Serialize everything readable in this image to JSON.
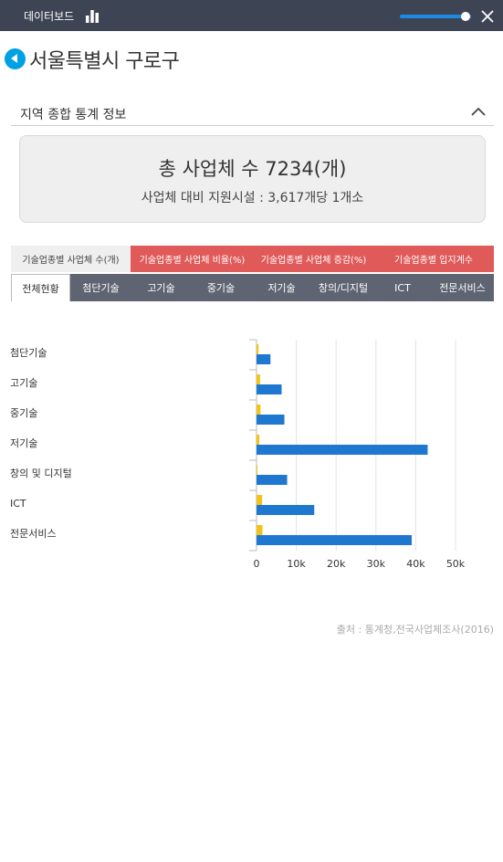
{
  "topbar": {
    "title": "데이터보드",
    "icons": [
      "bar-chart-icon",
      "slider",
      "close-icon"
    ],
    "slider_level": 0.92
  },
  "header": {
    "title": "서울특별시 구로구",
    "icon": "back-arrow-icon"
  },
  "section": {
    "title": "지역 종합 통계 정보",
    "icon": "chevron-up-icon"
  },
  "summary": {
    "title": "총 사업체 수 7234(개)",
    "subtitle": "사업체 대비 지원시설 : 3,617개당 1개소"
  },
  "tabs": [
    {
      "label": "기술업종별 사업체 수(개)",
      "active": true
    },
    {
      "label": "기술업종별 사업체 비율(%)",
      "active": false
    },
    {
      "label": "기술업종별 사업체 증감(%)",
      "active": false
    },
    {
      "label": "기술업종별 입지계수",
      "active": false
    }
  ],
  "subtabs": [
    {
      "label": "전체현황",
      "active": true
    },
    {
      "label": "첨단기술",
      "active": false
    },
    {
      "label": "고기술",
      "active": false
    },
    {
      "label": "중기술",
      "active": false
    },
    {
      "label": "저기술",
      "active": false
    },
    {
      "label": "창의/디지털",
      "active": false
    },
    {
      "label": "ICT",
      "active": false
    },
    {
      "label": "전문서비스",
      "active": false
    }
  ],
  "colors": {
    "topbar": "#3d4453",
    "accent": "#00a0e4",
    "tab_red": "#e05a5a",
    "subtab_bg": "#5e6472",
    "bar_blue": "#1e78d0",
    "bar_yellow": "#f2c41a"
  },
  "chart_data": {
    "type": "bar",
    "orientation": "horizontal",
    "categories": [
      "첨단기술",
      "고기술",
      "중기술",
      "저기술",
      "창의 및 디지털",
      "ICT",
      "전문서비스"
    ],
    "series": [
      {
        "values": [
          500,
          900,
          1000,
          700,
          200,
          1400,
          1500
        ],
        "color": "#f2c41a"
      },
      {
        "values": [
          3500,
          6300,
          7000,
          43000,
          7700,
          14500,
          39000
        ],
        "color": "#1e78d0"
      }
    ],
    "xlim": [
      0,
      50000
    ],
    "xticks": [
      "0",
      "10k",
      "20k",
      "30k",
      "40k",
      "50k"
    ],
    "grid": true
  },
  "source": "출처 : 통계청,전국사업체조사(2016)"
}
